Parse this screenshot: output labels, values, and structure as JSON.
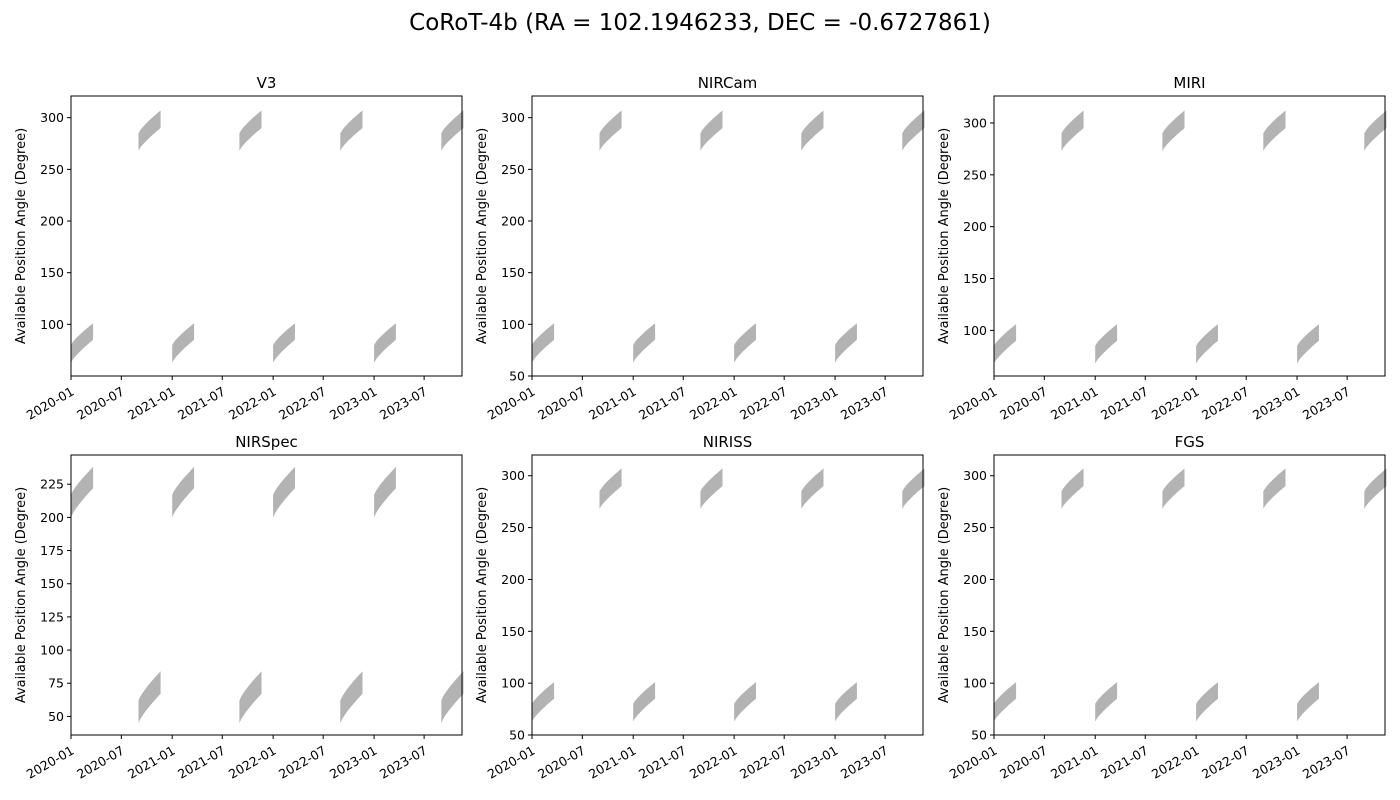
{
  "figure": {
    "title": "CoRoT-4b (RA = 102.1946233, DEC = -0.6727861)"
  },
  "chart_data": [
    {
      "type": "area",
      "title": "V3",
      "ylabel": "Available Position Angle (Degree)",
      "xlabel": "",
      "xlim": [
        "2020-01-01",
        "2023-11-15"
      ],
      "ylim": [
        50,
        321
      ],
      "xticks": [
        "2020-01",
        "2020-07",
        "2021-01",
        "2021-07",
        "2022-01",
        "2022-07",
        "2023-01",
        "2023-07"
      ],
      "yticks": [
        100,
        150,
        200,
        250,
        300
      ],
      "fill_color": "#b3b3b3",
      "windows": [
        {
          "start": "2020-01-01",
          "end": "2020-03-21",
          "low": [
            63,
            85
          ],
          "high": [
            80,
            101
          ]
        },
        {
          "start": "2020-09-01",
          "end": "2020-11-20",
          "low": [
            268,
            290
          ],
          "high": [
            285,
            307
          ]
        },
        {
          "start": "2021-01-01",
          "end": "2021-03-21",
          "low": [
            63,
            85
          ],
          "high": [
            80,
            101
          ]
        },
        {
          "start": "2021-09-01",
          "end": "2021-11-20",
          "low": [
            268,
            290
          ],
          "high": [
            285,
            307
          ]
        },
        {
          "start": "2022-01-01",
          "end": "2022-03-21",
          "low": [
            63,
            85
          ],
          "high": [
            80,
            101
          ]
        },
        {
          "start": "2022-09-01",
          "end": "2022-11-20",
          "low": [
            268,
            290
          ],
          "high": [
            285,
            307
          ]
        },
        {
          "start": "2023-01-01",
          "end": "2023-03-21",
          "low": [
            63,
            85
          ],
          "high": [
            80,
            101
          ]
        },
        {
          "start": "2023-09-01",
          "end": "2023-11-20",
          "low": [
            268,
            290
          ],
          "high": [
            285,
            307
          ]
        }
      ]
    },
    {
      "type": "area",
      "title": "NIRCam",
      "ylabel": "Available Position Angle (Degree)",
      "xlabel": "",
      "xlim": [
        "2020-01-01",
        "2023-11-15"
      ],
      "ylim": [
        50,
        321
      ],
      "xticks": [
        "2020-01",
        "2020-07",
        "2021-01",
        "2021-07",
        "2022-01",
        "2022-07",
        "2023-01",
        "2023-07"
      ],
      "yticks": [
        50,
        100,
        150,
        200,
        250,
        300
      ],
      "fill_color": "#b3b3b3",
      "windows": [
        {
          "start": "2020-01-01",
          "end": "2020-03-21",
          "low": [
            63,
            85
          ],
          "high": [
            80,
            101
          ]
        },
        {
          "start": "2020-09-01",
          "end": "2020-11-20",
          "low": [
            268,
            290
          ],
          "high": [
            285,
            307
          ]
        },
        {
          "start": "2021-01-01",
          "end": "2021-03-21",
          "low": [
            63,
            85
          ],
          "high": [
            80,
            101
          ]
        },
        {
          "start": "2021-09-01",
          "end": "2021-11-20",
          "low": [
            268,
            290
          ],
          "high": [
            285,
            307
          ]
        },
        {
          "start": "2022-01-01",
          "end": "2022-03-21",
          "low": [
            63,
            85
          ],
          "high": [
            80,
            101
          ]
        },
        {
          "start": "2022-09-01",
          "end": "2022-11-20",
          "low": [
            268,
            290
          ],
          "high": [
            285,
            307
          ]
        },
        {
          "start": "2023-01-01",
          "end": "2023-03-21",
          "low": [
            63,
            85
          ],
          "high": [
            80,
            101
          ]
        },
        {
          "start": "2023-09-01",
          "end": "2023-11-20",
          "low": [
            268,
            290
          ],
          "high": [
            285,
            307
          ]
        }
      ]
    },
    {
      "type": "area",
      "title": "MIRI",
      "ylabel": "Available Position Angle (Degree)",
      "xlabel": "",
      "xlim": [
        "2020-01-01",
        "2023-11-15"
      ],
      "ylim": [
        56,
        326
      ],
      "xticks": [
        "2020-01",
        "2020-07",
        "2021-01",
        "2021-07",
        "2022-01",
        "2022-07",
        "2023-01",
        "2023-07"
      ],
      "yticks": [
        100,
        150,
        200,
        250,
        300
      ],
      "fill_color": "#b3b3b3",
      "windows": [
        {
          "start": "2020-01-01",
          "end": "2020-03-21",
          "low": [
            68,
            90
          ],
          "high": [
            85,
            106
          ]
        },
        {
          "start": "2020-09-01",
          "end": "2020-11-20",
          "low": [
            273,
            295
          ],
          "high": [
            290,
            312
          ]
        },
        {
          "start": "2021-01-01",
          "end": "2021-03-21",
          "low": [
            68,
            90
          ],
          "high": [
            85,
            106
          ]
        },
        {
          "start": "2021-09-01",
          "end": "2021-11-20",
          "low": [
            273,
            295
          ],
          "high": [
            290,
            312
          ]
        },
        {
          "start": "2022-01-01",
          "end": "2022-03-21",
          "low": [
            68,
            90
          ],
          "high": [
            85,
            106
          ]
        },
        {
          "start": "2022-09-01",
          "end": "2022-11-20",
          "low": [
            273,
            295
          ],
          "high": [
            290,
            312
          ]
        },
        {
          "start": "2023-01-01",
          "end": "2023-03-21",
          "low": [
            68,
            90
          ],
          "high": [
            85,
            106
          ]
        },
        {
          "start": "2023-09-01",
          "end": "2023-11-20",
          "low": [
            273,
            295
          ],
          "high": [
            290,
            312
          ]
        }
      ]
    },
    {
      "type": "area",
      "title": "NIRSpec",
      "ylabel": "Available Position Angle (Degree)",
      "xlabel": "",
      "xlim": [
        "2020-01-01",
        "2023-11-15"
      ],
      "ylim": [
        36,
        247
      ],
      "xticks": [
        "2020-01",
        "2020-07",
        "2021-01",
        "2021-07",
        "2022-01",
        "2022-07",
        "2023-01",
        "2023-07"
      ],
      "yticks": [
        50,
        75,
        100,
        125,
        150,
        175,
        200,
        225
      ],
      "fill_color": "#b3b3b3",
      "windows": [
        {
          "start": "2020-01-01",
          "end": "2020-03-21",
          "low": [
            200,
            222
          ],
          "high": [
            217,
            238
          ]
        },
        {
          "start": "2020-09-01",
          "end": "2020-11-20",
          "low": [
            45,
            67
          ],
          "high": [
            62,
            84
          ]
        },
        {
          "start": "2021-01-01",
          "end": "2021-03-21",
          "low": [
            200,
            222
          ],
          "high": [
            217,
            238
          ]
        },
        {
          "start": "2021-09-01",
          "end": "2021-11-20",
          "low": [
            45,
            67
          ],
          "high": [
            62,
            84
          ]
        },
        {
          "start": "2022-01-01",
          "end": "2022-03-21",
          "low": [
            200,
            222
          ],
          "high": [
            217,
            238
          ]
        },
        {
          "start": "2022-09-01",
          "end": "2022-11-20",
          "low": [
            45,
            67
          ],
          "high": [
            62,
            84
          ]
        },
        {
          "start": "2023-01-01",
          "end": "2023-03-21",
          "low": [
            200,
            222
          ],
          "high": [
            217,
            238
          ]
        },
        {
          "start": "2023-09-01",
          "end": "2023-11-20",
          "low": [
            45,
            67
          ],
          "high": [
            62,
            84
          ]
        }
      ]
    },
    {
      "type": "area",
      "title": "NIRISS",
      "ylabel": "Available Position Angle (Degree)",
      "xlabel": "",
      "xlim": [
        "2020-01-01",
        "2023-11-15"
      ],
      "ylim": [
        50,
        320
      ],
      "xticks": [
        "2020-01",
        "2020-07",
        "2021-01",
        "2021-07",
        "2022-01",
        "2022-07",
        "2023-01",
        "2023-07"
      ],
      "yticks": [
        50,
        100,
        150,
        200,
        250,
        300
      ],
      "fill_color": "#b3b3b3",
      "windows": [
        {
          "start": "2020-01-01",
          "end": "2020-03-21",
          "low": [
            63,
            85
          ],
          "high": [
            80,
            101
          ]
        },
        {
          "start": "2020-09-01",
          "end": "2020-11-20",
          "low": [
            268,
            290
          ],
          "high": [
            285,
            307
          ]
        },
        {
          "start": "2021-01-01",
          "end": "2021-03-21",
          "low": [
            63,
            85
          ],
          "high": [
            80,
            101
          ]
        },
        {
          "start": "2021-09-01",
          "end": "2021-11-20",
          "low": [
            268,
            290
          ],
          "high": [
            285,
            307
          ]
        },
        {
          "start": "2022-01-01",
          "end": "2022-03-21",
          "low": [
            63,
            85
          ],
          "high": [
            80,
            101
          ]
        },
        {
          "start": "2022-09-01",
          "end": "2022-11-20",
          "low": [
            268,
            290
          ],
          "high": [
            285,
            307
          ]
        },
        {
          "start": "2023-01-01",
          "end": "2023-03-21",
          "low": [
            63,
            85
          ],
          "high": [
            80,
            101
          ]
        },
        {
          "start": "2023-09-01",
          "end": "2023-11-20",
          "low": [
            268,
            290
          ],
          "high": [
            285,
            307
          ]
        }
      ]
    },
    {
      "type": "area",
      "title": "FGS",
      "ylabel": "Available Position Angle (Degree)",
      "xlabel": "",
      "xlim": [
        "2020-01-01",
        "2023-11-15"
      ],
      "ylim": [
        50,
        320
      ],
      "xticks": [
        "2020-01",
        "2020-07",
        "2021-01",
        "2021-07",
        "2022-01",
        "2022-07",
        "2023-01",
        "2023-07"
      ],
      "yticks": [
        50,
        100,
        150,
        200,
        250,
        300
      ],
      "fill_color": "#b3b3b3",
      "windows": [
        {
          "start": "2020-01-01",
          "end": "2020-03-21",
          "low": [
            63,
            85
          ],
          "high": [
            80,
            101
          ]
        },
        {
          "start": "2020-09-01",
          "end": "2020-11-20",
          "low": [
            268,
            290
          ],
          "high": [
            285,
            307
          ]
        },
        {
          "start": "2021-01-01",
          "end": "2021-03-21",
          "low": [
            63,
            85
          ],
          "high": [
            80,
            101
          ]
        },
        {
          "start": "2021-09-01",
          "end": "2021-11-20",
          "low": [
            268,
            290
          ],
          "high": [
            285,
            307
          ]
        },
        {
          "start": "2022-01-01",
          "end": "2022-03-21",
          "low": [
            63,
            85
          ],
          "high": [
            80,
            101
          ]
        },
        {
          "start": "2022-09-01",
          "end": "2022-11-20",
          "low": [
            268,
            290
          ],
          "high": [
            285,
            307
          ]
        },
        {
          "start": "2023-01-01",
          "end": "2023-03-21",
          "low": [
            63,
            85
          ],
          "high": [
            80,
            101
          ]
        },
        {
          "start": "2023-09-01",
          "end": "2023-11-20",
          "low": [
            268,
            290
          ],
          "high": [
            285,
            307
          ]
        }
      ]
    }
  ]
}
